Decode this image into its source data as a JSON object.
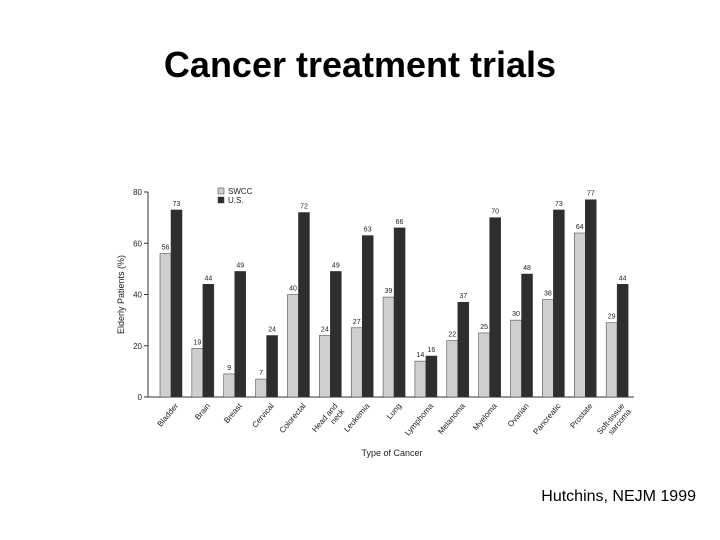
{
  "slide": {
    "title": "Cancer treatment trials",
    "citation": "Hutchins, NEJM 1999"
  },
  "colors": {
    "swcc": "#cfcfcf",
    "us": "#2e2e2e",
    "axis": "#333333"
  },
  "chart_data": {
    "type": "bar",
    "title": "",
    "xlabel": "Type of Cancer",
    "ylabel": "Elderly Patients (%)",
    "ylim": [
      0,
      80
    ],
    "yticks": [
      0,
      20,
      40,
      60,
      80
    ],
    "grid": false,
    "legend_position": "top-left",
    "categories": [
      "Bladder",
      "Brain",
      "Breast",
      "Cervical",
      "Colorectal",
      "Head and neck",
      "Leukemia",
      "Lung",
      "Lymphoma",
      "Melanoma",
      "Myeloma",
      "Ovarian",
      "Pancreatic",
      "Prostate",
      "Soft-tissue sarcoma"
    ],
    "category_lines": [
      [
        "Bladder"
      ],
      [
        "Brain"
      ],
      [
        "Breast"
      ],
      [
        "Cervical"
      ],
      [
        "Colorectal"
      ],
      [
        "Head and",
        "neck"
      ],
      [
        "Leukemia"
      ],
      [
        "Lung"
      ],
      [
        "Lymphoma"
      ],
      [
        "Melanoma"
      ],
      [
        "Myeloma"
      ],
      [
        "Ovarian"
      ],
      [
        "Pancreatic"
      ],
      [
        "Prostate"
      ],
      [
        "Soft-tissue",
        "sarcoma"
      ]
    ],
    "series": [
      {
        "name": "SWCC",
        "color": "#cfcfcf",
        "values": [
          56,
          19,
          9,
          7,
          40,
          24,
          27,
          39,
          14,
          22,
          25,
          30,
          38,
          64,
          29
        ]
      },
      {
        "name": "U.S.",
        "color": "#2e2e2e",
        "values": [
          73,
          44,
          49,
          24,
          72,
          49,
          63,
          66,
          16,
          37,
          70,
          48,
          73,
          77,
          44
        ]
      }
    ]
  }
}
